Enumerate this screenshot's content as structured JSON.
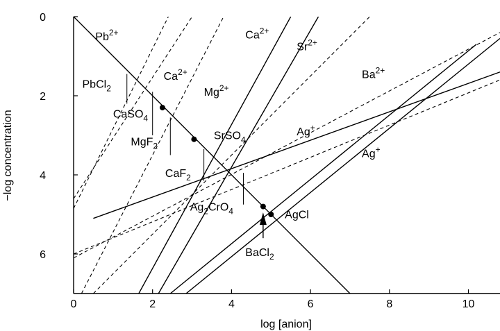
{
  "chart_data": {
    "type": "line",
    "xlabel": "log [anion]",
    "ylabel": "−log concentration",
    "xlim": [
      0,
      10.8
    ],
    "ylim": [
      0,
      7
    ],
    "y_inverted": true,
    "grid": false,
    "x_ticks": [
      "0",
      "2",
      "4",
      "6",
      "8",
      "10"
    ],
    "y_ticks": [
      "0",
      "2",
      "4",
      "6"
    ],
    "x_tick_values": [
      0,
      2,
      4,
      6,
      8,
      10
    ],
    "y_tick_values": [
      0,
      2,
      4,
      6
    ],
    "colors": {
      "line": "#000000",
      "background": "#ffffff"
    },
    "series": [
      {
        "style": "solid",
        "x": [
          0,
          7.0
        ],
        "y": [
          0,
          7.0
        ]
      },
      {
        "style": "solid",
        "x": [
          1.65,
          5.5
        ],
        "y": [
          7.0,
          0
        ]
      },
      {
        "style": "solid",
        "x": [
          2.15,
          6.2
        ],
        "y": [
          7.0,
          0
        ]
      },
      {
        "style": "solid",
        "x": [
          2.45,
          10.2
        ],
        "y": [
          7.0,
          0.7
        ]
      },
      {
        "style": "solid",
        "x": [
          2.85,
          10.8
        ],
        "y": [
          7.0,
          0.55
        ]
      },
      {
        "style": "solid",
        "x": [
          0.5,
          10.8
        ],
        "y": [
          5.1,
          1.4
        ]
      },
      {
        "style": "dashed",
        "x": [
          0,
          2.4
        ],
        "y": [
          4.85,
          0
        ]
      },
      {
        "style": "dashed",
        "x": [
          0,
          3.0
        ],
        "y": [
          4.6,
          0
        ]
      },
      {
        "style": "dashed",
        "x": [
          0.2,
          3.8
        ],
        "y": [
          7.0,
          0
        ]
      },
      {
        "style": "dashed",
        "x": [
          0.5,
          7.5
        ],
        "y": [
          7.0,
          0
        ]
      },
      {
        "style": "dashed",
        "x": [
          0,
          10.8
        ],
        "y": [
          6.1,
          0.4
        ]
      },
      {
        "style": "dashed",
        "x": [
          0,
          10.8
        ],
        "y": [
          6.0,
          1.6
        ]
      }
    ],
    "points": [
      {
        "x": 2.25,
        "y": 2.3
      },
      {
        "x": 3.05,
        "y": 3.1
      },
      {
        "x": 4.8,
        "y": 4.8
      },
      {
        "x": 5.0,
        "y": 5.0
      }
    ],
    "vertical_markers": [
      {
        "x": 1.35,
        "y1": 1.45,
        "y2": 2.2
      },
      {
        "x": 2.0,
        "y1": 1.9,
        "y2": 3.0
      },
      {
        "x": 2.45,
        "y1": 2.55,
        "y2": 3.5
      },
      {
        "x": 3.3,
        "y1": 3.35,
        "y2": 4.15
      },
      {
        "x": 4.3,
        "y1": 3.95,
        "y2": 4.75
      }
    ],
    "arrow": {
      "x": 4.8,
      "y_from": 5.6,
      "y_to": 4.95
    },
    "annotations": [
      {
        "x": 0.55,
        "y": 0.6,
        "base": "Pb",
        "sup": "2+",
        "sub": ""
      },
      {
        "x": 2.28,
        "y": 1.6,
        "base": "Ca",
        "sup": "2+",
        "sub": ""
      },
      {
        "x": 4.35,
        "y": 0.55,
        "base": "Ca",
        "sup": "2+",
        "sub": ""
      },
      {
        "x": 5.65,
        "y": 0.85,
        "base": "Sr",
        "sup": "2+",
        "sub": ""
      },
      {
        "x": 7.3,
        "y": 1.55,
        "base": "Ba",
        "sup": "2+",
        "sub": ""
      },
      {
        "x": 3.3,
        "y": 2.0,
        "base": "Mg",
        "sup": "2+",
        "sub": ""
      },
      {
        "x": 0.22,
        "y": 1.8,
        "base": "PbCl",
        "sup": "",
        "sub": "2"
      },
      {
        "x": 1.0,
        "y": 2.55,
        "base": "CaSO",
        "sup": "",
        "sub": "4"
      },
      {
        "x": 1.45,
        "y": 3.25,
        "base": "MgF",
        "sup": "",
        "sub": "2"
      },
      {
        "x": 3.55,
        "y": 3.1,
        "base": "SrSO",
        "sup": "",
        "sub": "4"
      },
      {
        "x": 5.65,
        "y": 3.0,
        "base": "Ag",
        "sup": "+",
        "sub": ""
      },
      {
        "x": 7.3,
        "y": 3.55,
        "base": "Ag",
        "sup": "+",
        "sub": ""
      },
      {
        "x": 2.32,
        "y": 4.05,
        "base": "CaF",
        "sup": "",
        "sub": "2"
      },
      {
        "x": 2.95,
        "y": 4.9,
        "base": "Ag",
        "sup": "",
        "sub": "2",
        "tail": "CrO",
        "tail_sub": "4"
      },
      {
        "x": 5.35,
        "y": 5.1,
        "base": "AgCl",
        "sup": "",
        "sub": ""
      },
      {
        "x": 4.35,
        "y": 6.05,
        "base": "BaCl",
        "sup": "",
        "sub": "2"
      }
    ]
  }
}
